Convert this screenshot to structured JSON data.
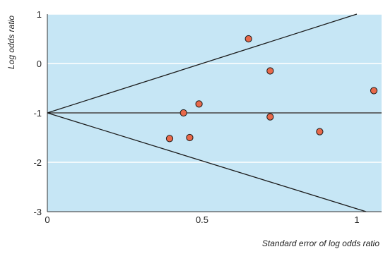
{
  "chart_data": {
    "type": "scatter",
    "title": "",
    "xlabel": "Standard error of log odds ratio",
    "ylabel": "Log odds ratio",
    "xlim": [
      0,
      1.08
    ],
    "ylim": [
      -3,
      1
    ],
    "x_ticks": [
      0,
      0.5,
      1
    ],
    "x_tick_labels": [
      "0",
      "0.5",
      "1"
    ],
    "y_ticks": [
      1,
      0,
      -1,
      -2,
      -3
    ],
    "y_tick_labels": [
      "1",
      "0",
      "-1",
      "-2",
      "-3"
    ],
    "grid": true,
    "points": [
      {
        "x": 0.395,
        "y": -1.52
      },
      {
        "x": 0.44,
        "y": -1.0
      },
      {
        "x": 0.46,
        "y": -1.5
      },
      {
        "x": 0.49,
        "y": -0.82
      },
      {
        "x": 0.65,
        "y": 0.5
      },
      {
        "x": 0.72,
        "y": -0.15
      },
      {
        "x": 0.72,
        "y": -1.08
      },
      {
        "x": 0.88,
        "y": -1.38
      },
      {
        "x": 1.055,
        "y": -0.55
      }
    ],
    "reference_lines": [
      {
        "kind": "pooled-estimate",
        "from": {
          "x": 0,
          "y": -1
        },
        "to": {
          "x": 1.08,
          "y": -1
        }
      },
      {
        "kind": "upper-limit",
        "from": {
          "x": 0,
          "y": -1
        },
        "to": {
          "x": 1.0,
          "y": 1.0
        }
      },
      {
        "kind": "lower-limit",
        "from": {
          "x": 0,
          "y": -1
        },
        "to": {
          "x": 1.03,
          "y": -3.0
        }
      }
    ],
    "colors": {
      "plot_background": "#c6e6f5",
      "gridline": "#ffffff",
      "point_fill": "#e8694a",
      "point_stroke": "#1a1a1a",
      "line": "#1a1a1a"
    }
  }
}
